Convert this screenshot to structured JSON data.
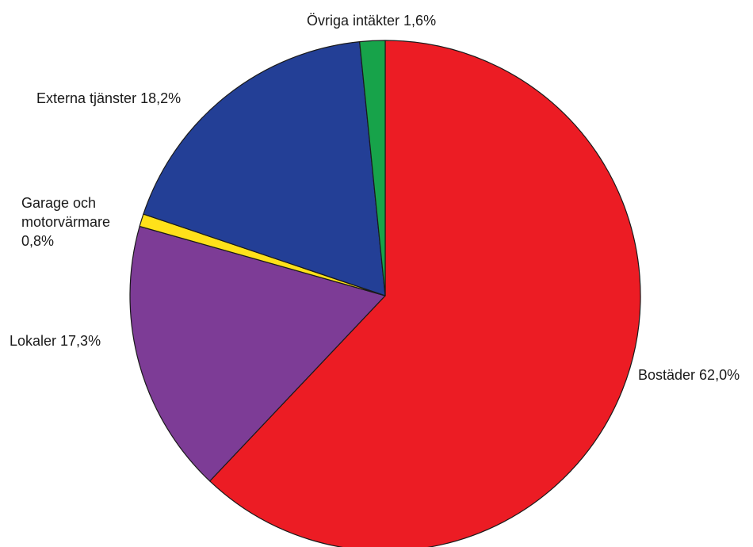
{
  "chart_data": {
    "type": "pie",
    "title": "",
    "start_angle_deg": 0,
    "direction": "clockwise",
    "slices": [
      {
        "name": "Bostäder",
        "value": 62.0,
        "label": "Bostäder 62,0%",
        "color": "#ec1c24"
      },
      {
        "name": "Lokaler",
        "value": 17.3,
        "label": "Lokaler 17,3%",
        "color": "#7d3c96"
      },
      {
        "name": "Garage och motorvärmare",
        "value": 0.8,
        "label_lines": [
          "Garage och",
          "motorvärmare",
          "0,8%"
        ],
        "color": "#ffe11a"
      },
      {
        "name": "Externa tjänster",
        "value": 18.2,
        "label": "Externa tjänster 18,2%",
        "color": "#233f96"
      },
      {
        "name": "Övriga intäkter",
        "value": 1.6,
        "label": "Övriga intäkter 1,6%",
        "color": "#17a34a"
      }
    ]
  }
}
